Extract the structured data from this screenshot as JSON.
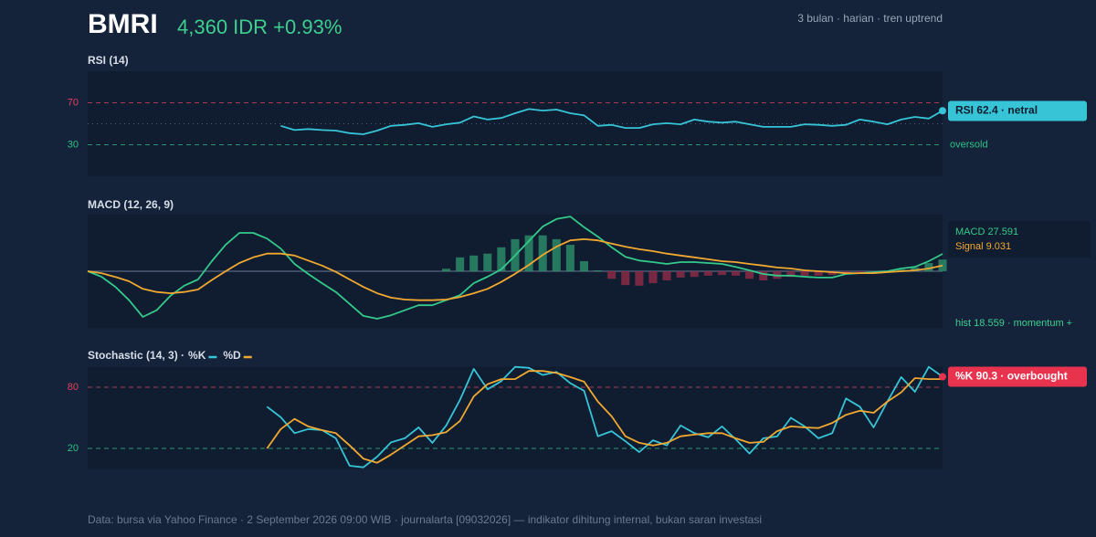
{
  "header": {
    "symbol": "BMRI",
    "quote": "4,360 IDR +0.93%",
    "meta": "3 bulan · harian · tren uptrend"
  },
  "footer": "Data: bursa via Yahoo Finance · 2 September 2026 09:00 WIB · journalarta [09032026] — indikator dihitung internal, bukan saran investasi",
  "chart_data": [
    {
      "type": "line",
      "title": "RSI (14)",
      "ylim": [
        0,
        100
      ],
      "yticks": [
        70,
        30
      ],
      "tick_colors": [
        "#e0405e",
        "#2fbf84"
      ],
      "midline": 50,
      "annotation": "oversold",
      "tag": "RSI 62.4 · netral",
      "tag_color": "#37c4d6",
      "series": [
        {
          "color": "#37c4d6",
          "values": [
            null,
            null,
            null,
            null,
            null,
            null,
            null,
            null,
            null,
            null,
            null,
            null,
            null,
            null,
            48,
            44,
            45,
            44,
            43.5,
            41,
            40,
            43.5,
            48,
            49,
            50.5,
            47,
            49.5,
            51,
            57,
            54,
            55.5,
            60,
            64,
            62.5,
            63.5,
            60,
            58,
            48,
            49,
            46,
            46,
            49.5,
            50.5,
            49.5,
            54,
            52,
            51,
            52,
            49.5,
            47,
            47,
            47,
            49.5,
            49,
            48,
            49,
            54,
            52,
            49.5,
            54,
            56.5,
            55,
            62.4
          ]
        }
      ]
    },
    {
      "type": "line",
      "title": "MACD (12, 26, 9)",
      "ylim": [
        -90,
        90
      ],
      "hist_label": "hist 18.559 · momentum +",
      "series": [
        {
          "type": "bar",
          "colors": [
            "#2a8a66",
            "#8a2b48"
          ],
          "values": [
            null,
            null,
            null,
            null,
            null,
            null,
            null,
            null,
            null,
            null,
            null,
            null,
            null,
            null,
            null,
            null,
            null,
            null,
            null,
            null,
            null,
            null,
            null,
            null,
            null,
            null,
            4,
            22,
            25,
            28,
            38,
            51,
            57,
            57,
            51,
            42,
            16,
            1.5,
            -12,
            -22,
            -23,
            -19,
            -14.5,
            -10,
            -9,
            -7,
            -6,
            -7,
            -12,
            -14.5,
            -12,
            -9,
            -7,
            -7,
            -6,
            -4.4,
            -1.5,
            -1.5,
            0.5,
            3,
            6,
            13,
            18.559
          ]
        },
        {
          "type": "line",
          "label": "MACD 27.591",
          "color": "#34c98a",
          "values": [
            0,
            -8.7,
            -24.7,
            -46,
            -72.6,
            -62,
            -39,
            -23,
            -13,
            16,
            42,
            61,
            61,
            52,
            36,
            11.6,
            -4.4,
            -19,
            -33,
            -52,
            -71,
            -75.5,
            -70,
            -62,
            -54,
            -54,
            -46,
            -38,
            -19,
            -8.7,
            3,
            25,
            48,
            71,
            83,
            87,
            70,
            55,
            38,
            23,
            17,
            14.5,
            11.6,
            14.5,
            14.5,
            13,
            11.6,
            7,
            1.5,
            -4.4,
            -7,
            -7,
            -8.7,
            -10,
            -10,
            -4.4,
            -3,
            -1.5,
            0,
            4.4,
            7,
            16,
            27.591
          ]
        },
        {
          "type": "line",
          "label": "Signal 9.031",
          "color": "#f0a830",
          "values": [
            0,
            -3,
            -9,
            -16,
            -28,
            -33,
            -35,
            -33,
            -29,
            -14,
            0,
            13,
            22,
            28,
            28,
            25,
            17,
            9,
            -1,
            -13,
            -25,
            -35,
            -42,
            -45,
            -46,
            -46,
            -45,
            -41,
            -35,
            -28,
            -17,
            -4,
            10,
            26,
            39,
            49,
            51,
            49,
            44,
            39,
            35,
            32,
            28,
            25,
            22,
            19,
            16,
            14.5,
            11.6,
            9,
            6,
            4.4,
            1.5,
            0,
            -1.5,
            -3,
            -3,
            -3,
            -1.5,
            0,
            1.5,
            4.4,
            9.031
          ]
        }
      ]
    },
    {
      "type": "line",
      "title": "Stochastic (14, 3) ·",
      "ylim": [
        0,
        100
      ],
      "yticks": [
        80,
        20
      ],
      "tick_colors": [
        "#e0405e",
        "#2fbf84"
      ],
      "tag": "%K 90.3 · overbought",
      "tag_color": "#e8334f",
      "series": [
        {
          "name": "%K",
          "color": "#37c4d6",
          "values": [
            null,
            null,
            null,
            null,
            null,
            null,
            null,
            null,
            null,
            null,
            null,
            null,
            null,
            61,
            50.6,
            35,
            39,
            38,
            30,
            3,
            1.5,
            12,
            26,
            30,
            40.6,
            25.5,
            42.5,
            67.6,
            98,
            78,
            86,
            100,
            99,
            92,
            95,
            84,
            76.5,
            32,
            37,
            27,
            16.5,
            28,
            23,
            42.5,
            35,
            31,
            41.6,
            29,
            15,
            30,
            31.8,
            50,
            41.6,
            30,
            35,
            69,
            61,
            40.6,
            66,
            90,
            75.6,
            100,
            90.3
          ]
        },
        {
          "name": "%D",
          "color": "#f0a830",
          "values": [
            null,
            null,
            null,
            null,
            null,
            null,
            null,
            null,
            null,
            null,
            null,
            null,
            null,
            20,
            39,
            49,
            41.6,
            38,
            35,
            23,
            10,
            6,
            14,
            23,
            32,
            33,
            36,
            47,
            71,
            83,
            88,
            88,
            96,
            96,
            94,
            90,
            85.5,
            66,
            51.5,
            32,
            25.5,
            23,
            25.5,
            32,
            33.6,
            35,
            35,
            30,
            25.5,
            26.4,
            37,
            41.6,
            40.6,
            40,
            45,
            53,
            57,
            55,
            66,
            75,
            89,
            88,
            88
          ]
        }
      ]
    }
  ]
}
